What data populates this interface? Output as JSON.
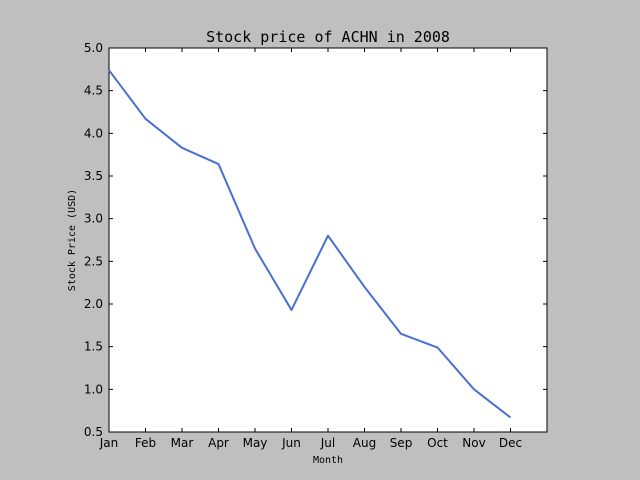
{
  "chart_data": {
    "type": "line",
    "title": "Stock price of ACHN in 2008",
    "xlabel": "Month",
    "ylabel": "Stock Price (USD)",
    "categories": [
      "Jan",
      "Feb",
      "Mar",
      "Apr",
      "May",
      "Jun",
      "Jul",
      "Aug",
      "Sep",
      "Oct",
      "Nov",
      "Dec"
    ],
    "ylim": [
      0.5,
      5.0
    ],
    "yticks": [
      "0.5",
      "1.0",
      "1.5",
      "2.0",
      "2.5",
      "3.0",
      "3.5",
      "4.0",
      "4.5",
      "5.0"
    ],
    "grid": false,
    "series": [
      {
        "values": [
          4.74,
          4.17,
          3.83,
          3.64,
          2.65,
          1.93,
          2.8,
          2.2,
          1.65,
          1.49,
          1.0,
          0.67
        ],
        "color": "#4a6fd1"
      }
    ]
  }
}
